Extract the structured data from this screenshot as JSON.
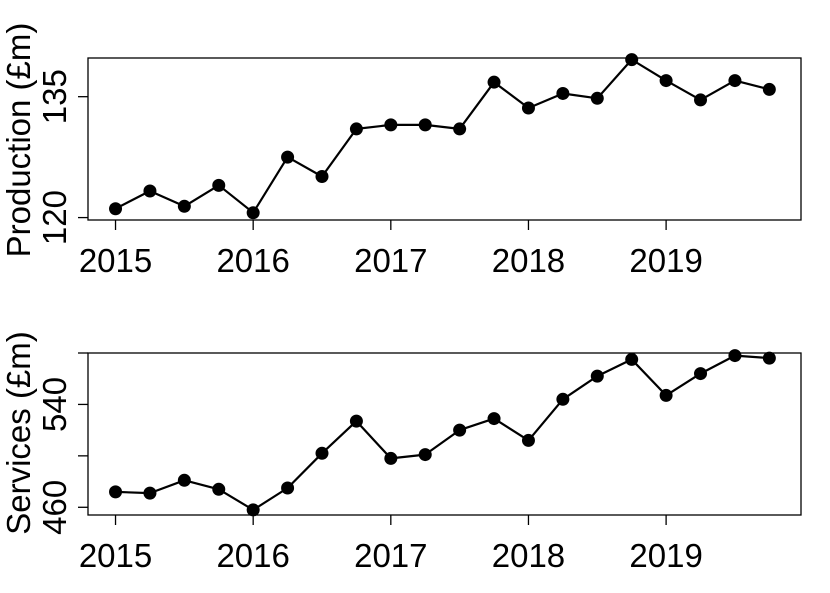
{
  "chart_data": [
    {
      "type": "line",
      "ylabel": "Production (£m)",
      "x": [
        2015.0,
        2015.25,
        2015.5,
        2015.75,
        2016.0,
        2016.25,
        2016.5,
        2016.75,
        2017.0,
        2017.25,
        2017.5,
        2017.75,
        2018.0,
        2018.25,
        2018.5,
        2018.75,
        2019.0,
        2019.25,
        2019.5,
        2019.75
      ],
      "series": [
        {
          "values": [
            121.1,
            123.3,
            121.4,
            124.0,
            120.6,
            127.5,
            125.1,
            131.0,
            131.5,
            131.5,
            131.0,
            136.8,
            133.6,
            135.4,
            134.8,
            139.6,
            137.0,
            134.6,
            137.0,
            135.9
          ]
        }
      ],
      "xticks": [
        "2015",
        "2016",
        "2017",
        "2018",
        "2019"
      ],
      "yticks": [
        "120",
        "135"
      ],
      "xlim": [
        2014.8,
        2019.98
      ],
      "ylim": [
        119.7,
        139.8
      ],
      "marker_color": "#000000",
      "line_color": "#000000"
    },
    {
      "type": "line",
      "ylabel": "Services (£m)",
      "x": [
        2015.0,
        2015.25,
        2015.5,
        2015.75,
        2016.0,
        2016.25,
        2016.5,
        2016.75,
        2017.0,
        2017.25,
        2017.5,
        2017.75,
        2018.0,
        2018.25,
        2018.5,
        2018.75,
        2019.0,
        2019.25,
        2019.5,
        2019.75
      ],
      "series": [
        {
          "values": [
            472,
            471,
            481,
            474,
            458,
            475,
            502,
            527,
            498,
            501,
            520,
            529,
            512,
            544,
            562,
            575,
            547,
            564,
            578,
            576
          ]
        }
      ],
      "xticks": [
        "2015",
        "2016",
        "2017",
        "2018",
        "2019"
      ],
      "yticks": [
        "460",
        "540"
      ],
      "ytick_values": [
        460,
        500,
        540,
        580
      ],
      "xlim": [
        2014.8,
        2019.98
      ],
      "ylim": [
        454,
        580
      ],
      "marker_color": "#000000",
      "line_color": "#000000"
    }
  ]
}
